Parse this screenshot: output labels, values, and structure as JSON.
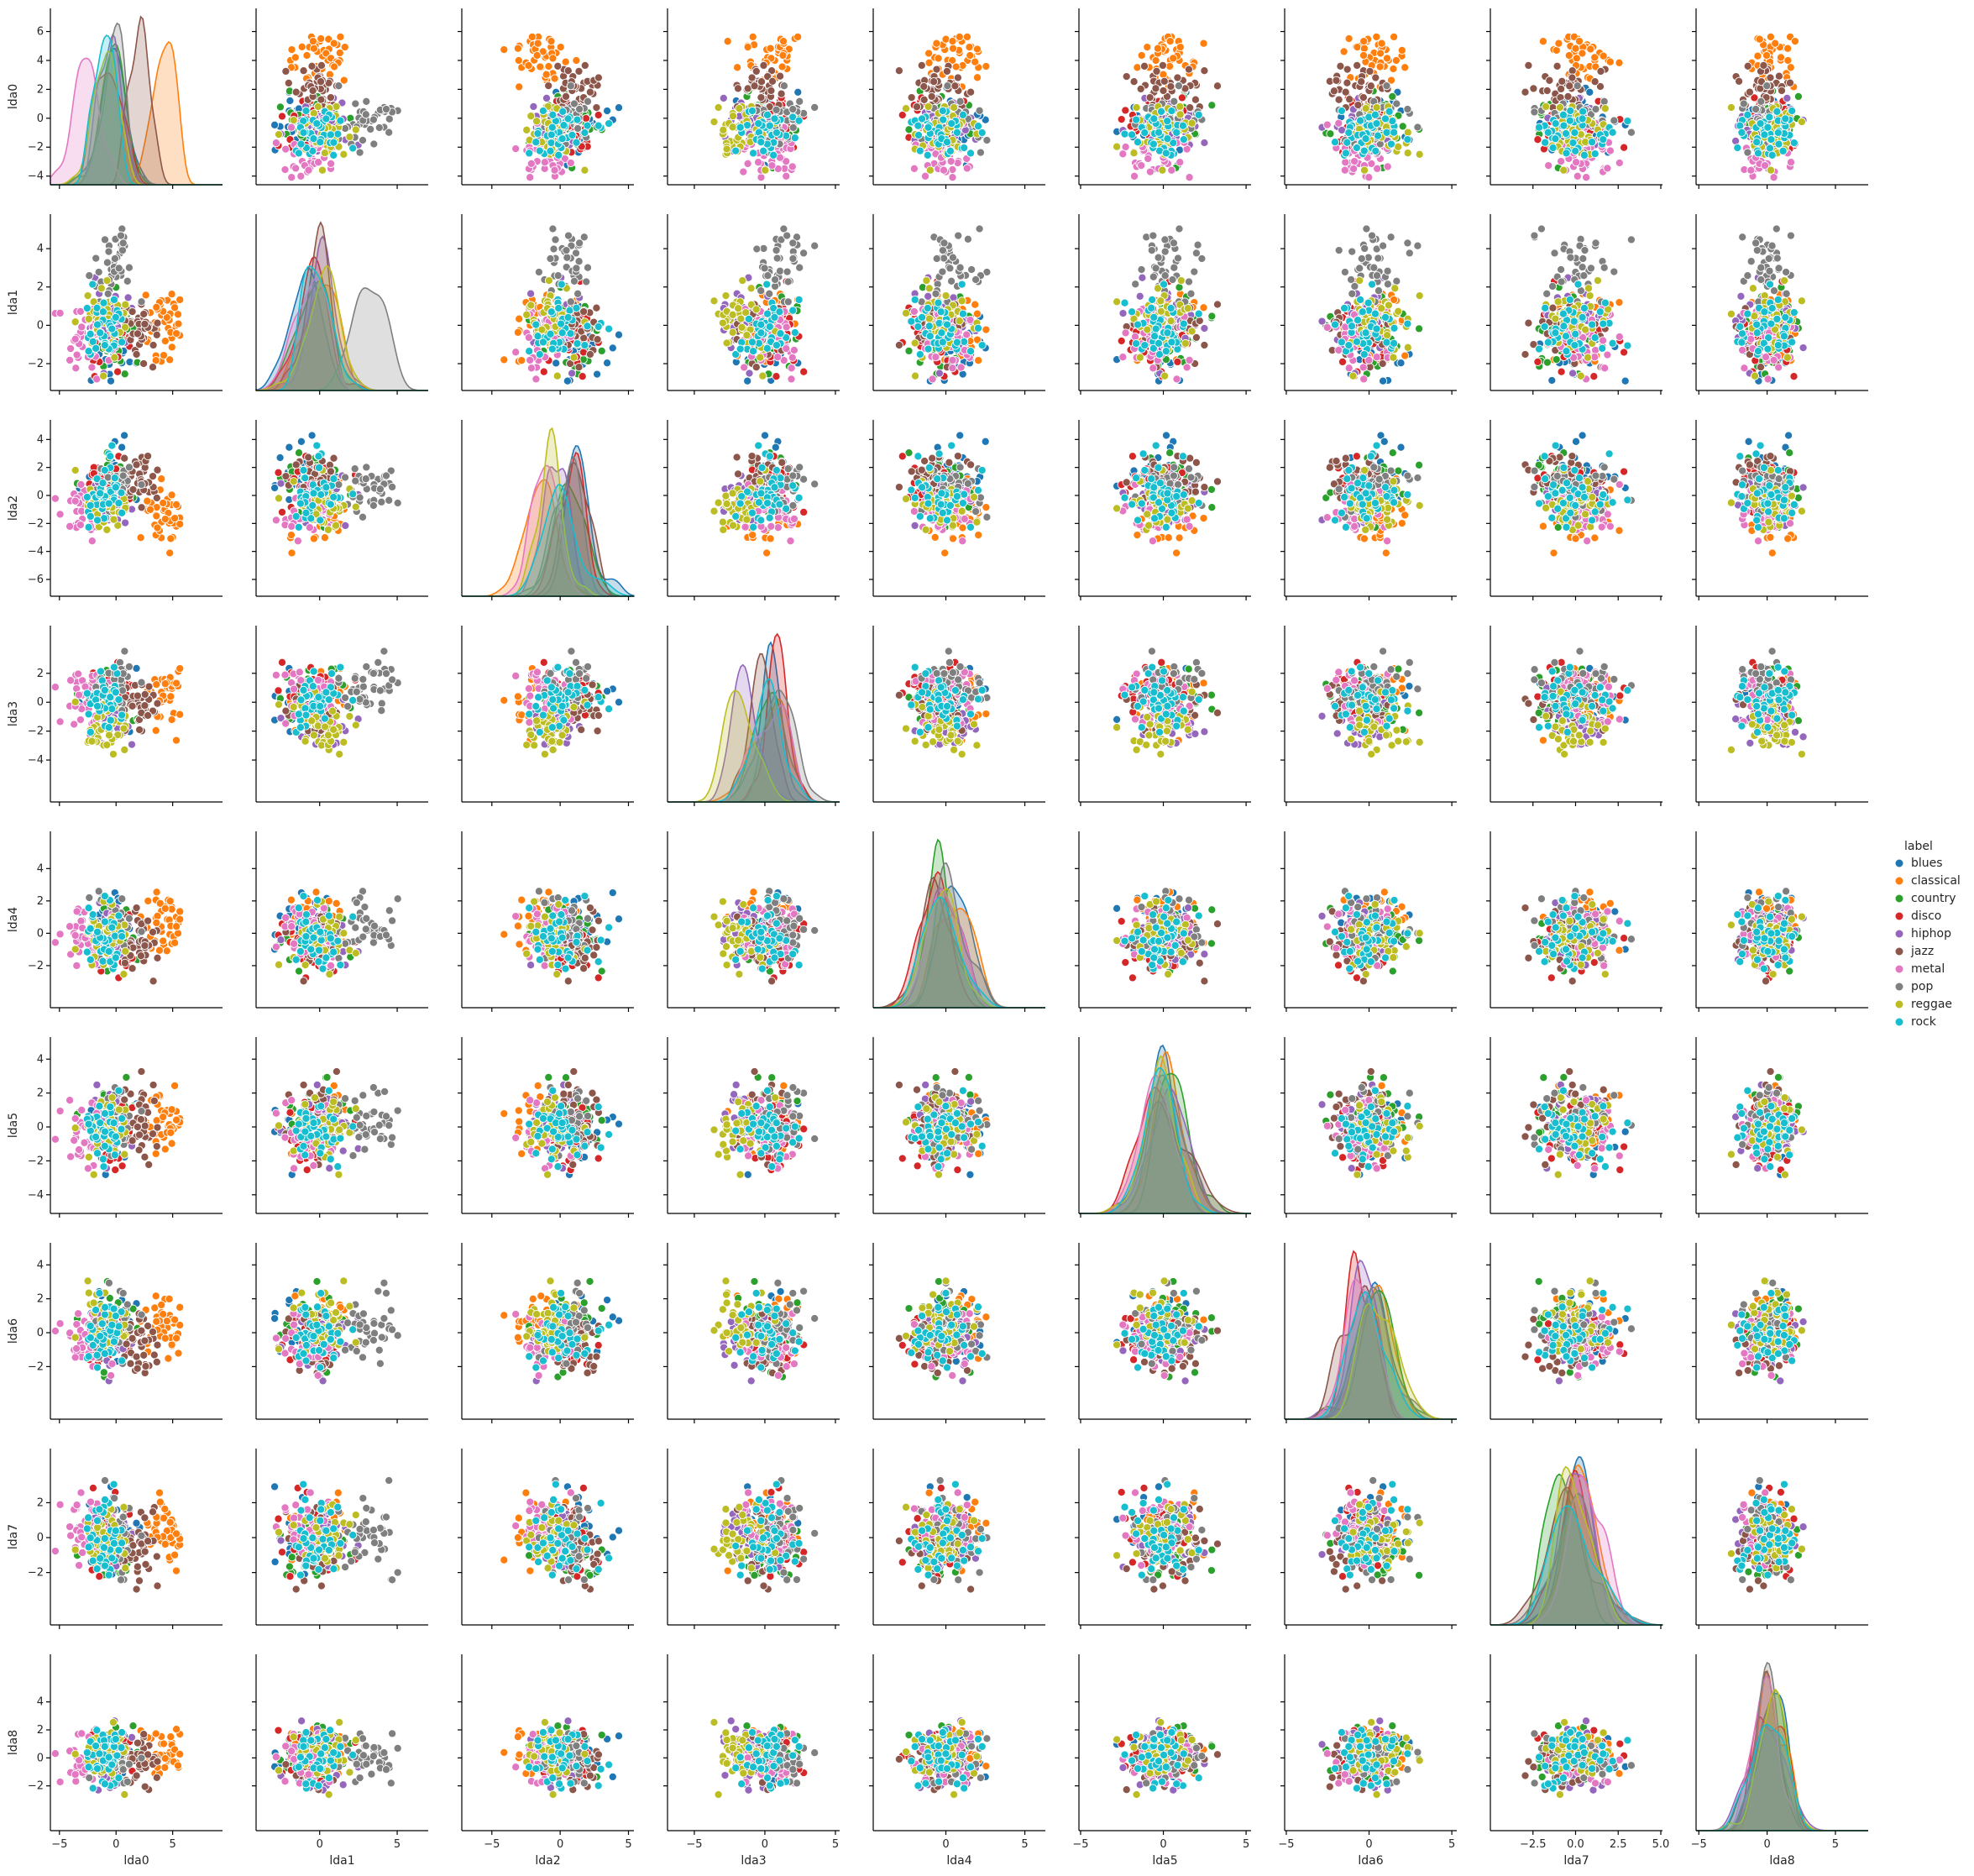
{
  "chart_data": {
    "type": "scatter",
    "variables": [
      "lda0",
      "lda1",
      "lda2",
      "lda3",
      "lda4",
      "lda5",
      "lda6",
      "lda7",
      "lda8"
    ],
    "hue_title": "label",
    "legend_position": "right",
    "labels": [
      "blues",
      "classical",
      "country",
      "disco",
      "hiphop",
      "jazz",
      "metal",
      "pop",
      "reggae",
      "rock"
    ],
    "colors": {
      "blues": "#1f77b4",
      "classical": "#ff7f0e",
      "country": "#2ca02c",
      "disco": "#d62728",
      "hiphop": "#9467bd",
      "jazz": "#8c564b",
      "metal": "#e377c2",
      "pop": "#7f7f7f",
      "reggae": "#bcbd22",
      "rock": "#17becf"
    },
    "points_per_class": 40,
    "class_means": {
      "blues": [
        -0.3,
        -0.8,
        1.6,
        0.6,
        0.8,
        -0.3,
        0.3,
        0.3,
        0.2
      ],
      "classical": [
        4.2,
        0.0,
        -1.4,
        0.3,
        0.5,
        0.2,
        0.2,
        0.3,
        0.3
      ],
      "country": [
        -0.5,
        -0.4,
        0.9,
        0.2,
        -0.3,
        0.5,
        0.7,
        -0.5,
        0.1
      ],
      "disco": [
        -0.8,
        -0.5,
        0.7,
        0.9,
        -0.4,
        -0.4,
        -0.4,
        -0.2,
        0.2
      ],
      "hiphop": [
        -0.7,
        0.2,
        -0.5,
        -1.2,
        0.0,
        0.1,
        -0.3,
        0.1,
        -0.1
      ],
      "jazz": [
        2.0,
        -0.2,
        1.0,
        -0.3,
        -0.3,
        0.3,
        -0.8,
        -0.2,
        -0.2
      ],
      "metal": [
        -2.6,
        -0.6,
        -1.2,
        0.6,
        0.1,
        -0.5,
        -0.2,
        0.3,
        -0.1
      ],
      "pop": [
        -0.2,
        3.2,
        0.6,
        0.8,
        0.5,
        0.3,
        0.4,
        0.1,
        0.1
      ],
      "reggae": [
        -0.6,
        0.0,
        -0.5,
        -1.8,
        -0.3,
        0.0,
        0.2,
        0.0,
        0.0
      ],
      "rock": [
        -0.9,
        -0.4,
        0.2,
        0.1,
        -0.2,
        -0.2,
        0.2,
        -0.1,
        -0.2
      ]
    },
    "class_sd": 0.95,
    "axes": {
      "lda0": {
        "range": [
          -5.8,
          9.4
        ],
        "ticks": [
          -5,
          0,
          5
        ],
        "yticks": [
          -4,
          -2,
          0,
          2,
          4,
          6
        ],
        "yrange": [
          -4.6,
          7.6
        ]
      },
      "lda1": {
        "range": [
          -4.1,
          7.0
        ],
        "ticks": [
          -2,
          0,
          2,
          4
        ],
        "xticks": [
          0,
          5
        ],
        "yrange": [
          -3.4,
          5.8
        ]
      },
      "lda2": {
        "range": [
          -7.2,
          5.4
        ],
        "ticks": [
          -6,
          -4,
          -2,
          0,
          2,
          4
        ],
        "xticks": [
          -5,
          0,
          5
        ]
      },
      "lda3": {
        "range": [
          -6.9,
          5.3
        ],
        "ticks": [
          -4,
          -2,
          0,
          2
        ],
        "xticks": [
          -5,
          0,
          5
        ]
      },
      "lda4": {
        "range": [
          -4.6,
          6.3
        ],
        "ticks": [
          -2,
          0,
          2,
          4
        ],
        "xticks": [
          0,
          5
        ]
      },
      "lda5": {
        "range": [
          -5.1,
          5.3
        ],
        "ticks": [
          -4,
          -2,
          0,
          2,
          4
        ],
        "xticks": [
          -5,
          0,
          5
        ]
      },
      "lda6": {
        "range": [
          -5.1,
          5.3
        ],
        "ticks": [
          -2,
          0,
          2,
          4
        ],
        "xticks": [
          -5,
          0,
          5
        ]
      },
      "lda7": {
        "range": [
          -5.0,
          5.1
        ],
        "ticks": [
          -2,
          0,
          2
        ],
        "xticks": [
          -2.5,
          0.0,
          2.5,
          5.0
        ],
        "xtick_labels": [
          "−2.5",
          "0.0",
          "2.5",
          "5.0"
        ]
      },
      "lda8": {
        "range": [
          -5.2,
          7.4
        ],
        "ticks": [
          -2,
          0,
          2,
          4
        ],
        "xticks": [
          -5,
          0,
          5
        ]
      }
    }
  }
}
